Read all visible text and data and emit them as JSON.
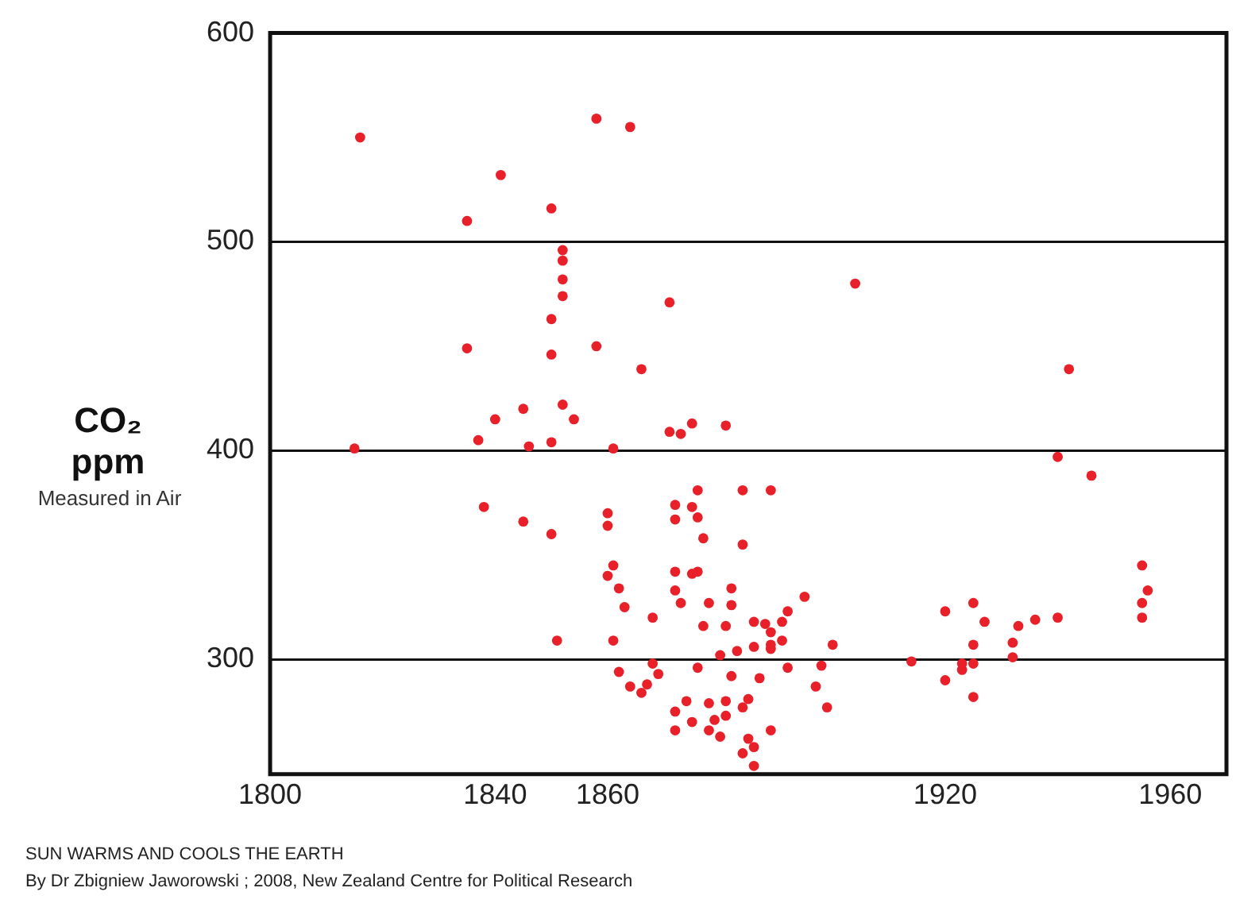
{
  "chart_data": {
    "type": "scatter",
    "ylabel": "CO₂ ppm",
    "annotations": [
      "Measured in Air",
      "SUN WARMS AND COOLS THE EARTH",
      "By Dr Zbigniew Jaworowski ; 2008, New Zealand Centre for Political Research"
    ],
    "x": [
      1816,
      1858,
      1864,
      1841,
      1835,
      1850,
      1852,
      1852,
      1852,
      1852,
      1850,
      1871,
      1835,
      1858,
      1850,
      1866,
      1852,
      1845,
      1854,
      1840,
      1837,
      1815,
      1846,
      1850,
      1861,
      1871,
      1873,
      1904,
      1875,
      1881,
      1942,
      1940,
      1838,
      1845,
      1850,
      1860,
      1860,
      1861,
      1860,
      1862,
      1863,
      1868,
      1851,
      1861,
      1862,
      1868,
      1869,
      1864,
      1867,
      1866,
      1872,
      1872,
      1872,
      1872,
      1875,
      1872,
      1872,
      1873,
      1875,
      1874,
      1875,
      1876,
      1876,
      1877,
      1884,
      1889,
      1884,
      1876,
      1882,
      1878,
      1882,
      1877,
      1881,
      1886,
      1888,
      1889,
      1891,
      1892,
      1895,
      1886,
      1889,
      1889,
      1891,
      1900,
      1883,
      1880,
      1876,
      1882,
      1887,
      1892,
      1898,
      1897,
      1899,
      1878,
      1881,
      1885,
      1884,
      1881,
      1879,
      1878,
      1880,
      1889,
      1885,
      1886,
      1884,
      1886,
      1914,
      1920,
      1923,
      1925,
      1923,
      1925,
      1920,
      1925,
      1927,
      1925,
      1932,
      1932,
      1933,
      1936,
      1940,
      1946,
      1955,
      1956,
      1955,
      1955
    ],
    "values": [
      550,
      559,
      555,
      532,
      510,
      516,
      496,
      491,
      482,
      474,
      463,
      471,
      449,
      450,
      446,
      439,
      422,
      420,
      415,
      415,
      405,
      401,
      402,
      404,
      401,
      409,
      408,
      480,
      413,
      412,
      439,
      397,
      373,
      366,
      360,
      370,
      364,
      345,
      340,
      334,
      325,
      320,
      309,
      309,
      294,
      298,
      293,
      287,
      288,
      284,
      275,
      266,
      374,
      367,
      373,
      342,
      333,
      327,
      341,
      280,
      270,
      381,
      368,
      358,
      381,
      381,
      355,
      342,
      334,
      327,
      326,
      316,
      316,
      318,
      317,
      313,
      318,
      323,
      330,
      306,
      307,
      305,
      309,
      307,
      304,
      302,
      296,
      292,
      291,
      296,
      297,
      287,
      277,
      279,
      280,
      281,
      277,
      273,
      271,
      266,
      263,
      266,
      262,
      258,
      255,
      249,
      299,
      290,
      295,
      282,
      298,
      298,
      323,
      327,
      318,
      307,
      308,
      301,
      316,
      319,
      320,
      388,
      345,
      333,
      327,
      320
    ],
    "color": "#e8202a",
    "marker": "circle",
    "grid": "y",
    "legend": false,
    "xlim": [
      1800,
      1970
    ],
    "xticks": [
      1800,
      1840,
      1860,
      1920,
      1960
    ],
    "ylim": [
      245,
      600
    ],
    "yticks": [
      300,
      400,
      500,
      600
    ]
  }
}
